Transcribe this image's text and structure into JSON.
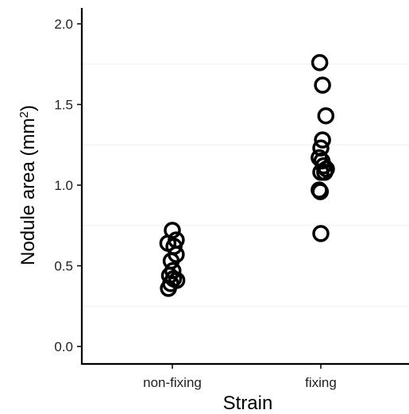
{
  "chart_data": {
    "type": "scatter",
    "title": "",
    "xlabel": "Strain",
    "ylabel": "Nodule area (mm",
    "ylabel_sup": "2",
    "ylabel_close": ")",
    "categories": [
      "non-fixing",
      "fixing"
    ],
    "ylim": [
      0,
      2.05
    ],
    "yticks": [
      0.0,
      0.5,
      1.0,
      1.5,
      2.0
    ],
    "ytick_labels": [
      "0.0",
      "0.5",
      "1.0",
      "1.5",
      "2.0"
    ],
    "grid": "minor horizontal lines only",
    "legend": "none",
    "marker": "open circle",
    "series": [
      {
        "category": "non-fixing",
        "points": [
          {
            "y": 0.72,
            "jitter": 0.0
          },
          {
            "y": 0.66,
            "jitter": 0.07
          },
          {
            "y": 0.64,
            "jitter": -0.08
          },
          {
            "y": 0.62,
            "jitter": 0.03
          },
          {
            "y": 0.57,
            "jitter": 0.07
          },
          {
            "y": 0.53,
            "jitter": -0.02
          },
          {
            "y": 0.47,
            "jitter": 0.01
          },
          {
            "y": 0.44,
            "jitter": -0.05
          },
          {
            "y": 0.42,
            "jitter": 0.02
          },
          {
            "y": 0.41,
            "jitter": 0.08
          },
          {
            "y": 0.39,
            "jitter": -0.03
          },
          {
            "y": 0.36,
            "jitter": -0.07
          }
        ]
      },
      {
        "category": "fixing",
        "points": [
          {
            "y": 1.76,
            "jitter": -0.02
          },
          {
            "y": 1.62,
            "jitter": 0.03
          },
          {
            "y": 1.43,
            "jitter": 0.09
          },
          {
            "y": 1.28,
            "jitter": 0.03
          },
          {
            "y": 1.23,
            "jitter": 0.0
          },
          {
            "y": 1.17,
            "jitter": -0.03
          },
          {
            "y": 1.15,
            "jitter": 0.02
          },
          {
            "y": 1.12,
            "jitter": 0.05
          },
          {
            "y": 1.1,
            "jitter": 0.1
          },
          {
            "y": 1.08,
            "jitter": 0.0
          },
          {
            "y": 1.08,
            "jitter": 0.07
          },
          {
            "y": 0.97,
            "jitter": -0.03
          },
          {
            "y": 0.96,
            "jitter": -0.01
          },
          {
            "y": 0.7,
            "jitter": 0.0
          }
        ]
      }
    ]
  }
}
